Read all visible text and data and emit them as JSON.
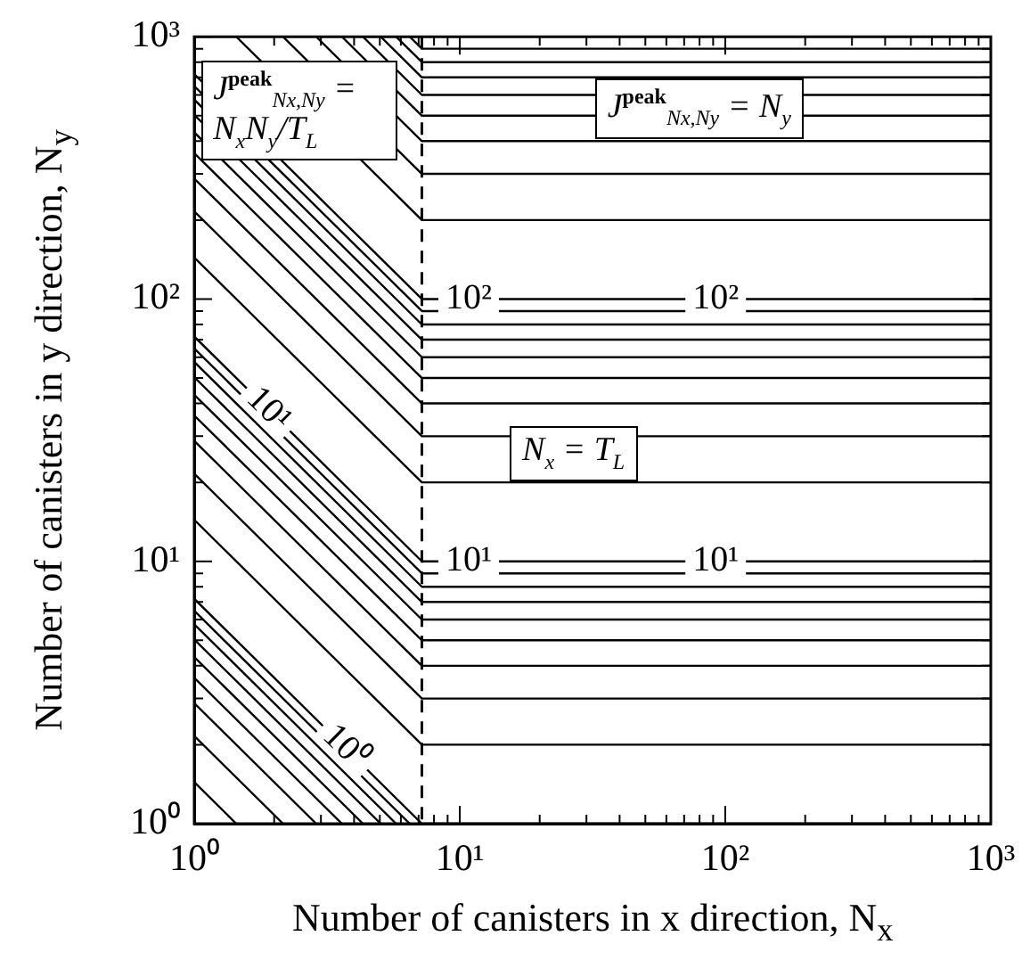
{
  "chart_data": {
    "type": "line",
    "log": "xy",
    "marker": "none",
    "legend": false,
    "xlabel": "Number of canisters in x direction, N$_{x}$",
    "ylabel": "Number of canisters in y direction, N$_{y}$",
    "xlim": [
      1,
      1000
    ],
    "ylim": [
      1,
      1000
    ],
    "xticks": [
      {
        "value": 1,
        "label": "10⁰"
      },
      {
        "value": 2,
        "label": null
      },
      {
        "value": 3,
        "label": null
      },
      {
        "value": 4,
        "label": null
      },
      {
        "value": 5,
        "label": null
      },
      {
        "value": 6,
        "label": null
      },
      {
        "value": 7,
        "label": null
      },
      {
        "value": 8,
        "label": null
      },
      {
        "value": 9,
        "label": null
      },
      {
        "value": 10,
        "label": "10¹"
      },
      {
        "value": 20,
        "label": null
      },
      {
        "value": 30,
        "label": null
      },
      {
        "value": 40,
        "label": null
      },
      {
        "value": 50,
        "label": null
      },
      {
        "value": 60,
        "label": null
      },
      {
        "value": 70,
        "label": null
      },
      {
        "value": 80,
        "label": null
      },
      {
        "value": 90,
        "label": null
      },
      {
        "value": 100,
        "label": "10²"
      },
      {
        "value": 200,
        "label": null
      },
      {
        "value": 300,
        "label": null
      },
      {
        "value": 400,
        "label": null
      },
      {
        "value": 500,
        "label": null
      },
      {
        "value": 600,
        "label": null
      },
      {
        "value": 700,
        "label": null
      },
      {
        "value": 800,
        "label": null
      },
      {
        "value": 900,
        "label": null
      },
      {
        "value": 1000,
        "label": "10³"
      }
    ],
    "yticks": [
      {
        "value": 1,
        "label": "10⁰"
      },
      {
        "value": 2,
        "label": null
      },
      {
        "value": 3,
        "label": null
      },
      {
        "value": 4,
        "label": null
      },
      {
        "value": 5,
        "label": null
      },
      {
        "value": 6,
        "label": null
      },
      {
        "value": 7,
        "label": null
      },
      {
        "value": 8,
        "label": null
      },
      {
        "value": 9,
        "label": null
      },
      {
        "value": 10,
        "label": "10¹"
      },
      {
        "value": 20,
        "label": null
      },
      {
        "value": 30,
        "label": null
      },
      {
        "value": 40,
        "label": null
      },
      {
        "value": 50,
        "label": null
      },
      {
        "value": 60,
        "label": null
      },
      {
        "value": 70,
        "label": null
      },
      {
        "value": 80,
        "label": null
      },
      {
        "value": 90,
        "label": null
      },
      {
        "value": 100,
        "label": "10²"
      },
      {
        "value": 200,
        "label": null
      },
      {
        "value": 300,
        "label": null
      },
      {
        "value": 400,
        "label": null
      },
      {
        "value": 500,
        "label": null
      },
      {
        "value": 600,
        "label": null
      },
      {
        "value": 700,
        "label": null
      },
      {
        "value": 800,
        "label": null
      },
      {
        "value": 900,
        "label": null
      },
      {
        "value": 1000,
        "label": "10³"
      }
    ],
    "ref_lines": [
      {
        "axis": "x",
        "value": 7.2,
        "label": "N$_{x}$ = T$_{L}$",
        "line_style": "dashed",
        "color": "#000000"
      }
    ],
    "annotations": [
      "J$^{peak}$$_{Nx,Ny}$ = N$_{x}$N$_{y}$/T$_{L}$",
      "J$^{peak}$$_{Nx,Ny}$ = N$_{y}$",
      {
        "text": "10⁰",
        "x": 3.7,
        "y": 1.95
      },
      {
        "text": "10¹",
        "x": 1.9,
        "y": 37.9
      },
      {
        "text": "10¹",
        "x": 10.8,
        "y": 10
      },
      {
        "text": "10¹",
        "x": 92,
        "y": 10
      },
      {
        "text": "10²",
        "x": 10.8,
        "y": 100
      },
      {
        "text": "10²",
        "x": 92,
        "y": 100
      }
    ],
    "series": [
      {
        "color": "#000000",
        "x": [
          1,
          1.44
        ],
        "values": [
          1.44,
          1
        ]
      },
      {
        "color": "#000000",
        "x": [
          1,
          2.16
        ],
        "values": [
          2.16,
          1
        ]
      },
      {
        "color": "#000000",
        "x": [
          1,
          2.88
        ],
        "values": [
          2.88,
          1
        ]
      },
      {
        "color": "#000000",
        "x": [
          1,
          3.6
        ],
        "values": [
          3.6,
          1
        ]
      },
      {
        "color": "#000000",
        "x": [
          1,
          4.32
        ],
        "values": [
          4.32,
          1
        ]
      },
      {
        "color": "#000000",
        "x": [
          1,
          5.04
        ],
        "values": [
          5.04,
          1
        ]
      },
      {
        "color": "#000000",
        "x": [
          1,
          5.76
        ],
        "values": [
          5.76,
          1
        ]
      },
      {
        "color": "#000000",
        "x": [
          1,
          6.48
        ],
        "values": [
          6.48,
          1
        ]
      },
      {
        "color": "#000000",
        "x": [
          1,
          7.2,
          1000
        ],
        "values": [
          7.2,
          1,
          1
        ]
      },
      {
        "color": "#000000",
        "x": [
          1,
          7.2,
          1000
        ],
        "values": [
          14.4,
          2,
          2
        ]
      },
      {
        "color": "#000000",
        "x": [
          1,
          7.2,
          1000
        ],
        "values": [
          21.6,
          3,
          3
        ]
      },
      {
        "color": "#000000",
        "x": [
          1,
          7.2,
          1000
        ],
        "values": [
          28.8,
          4,
          4
        ]
      },
      {
        "color": "#000000",
        "x": [
          1,
          7.2,
          1000
        ],
        "values": [
          36,
          5,
          5
        ]
      },
      {
        "color": "#000000",
        "x": [
          1,
          7.2,
          1000
        ],
        "values": [
          43.2,
          6,
          6
        ]
      },
      {
        "color": "#000000",
        "x": [
          1,
          7.2,
          1000
        ],
        "values": [
          50.4,
          7,
          7
        ]
      },
      {
        "color": "#000000",
        "x": [
          1,
          7.2,
          1000
        ],
        "values": [
          57.6,
          8,
          8
        ]
      },
      {
        "color": "#000000",
        "x": [
          1,
          7.2,
          1000
        ],
        "values": [
          64.8,
          9,
          9
        ]
      },
      {
        "color": "#000000",
        "x": [
          1,
          7.2,
          1000
        ],
        "values": [
          72,
          10,
          10
        ]
      },
      {
        "color": "#000000",
        "x": [
          1,
          7.2,
          1000
        ],
        "values": [
          144,
          20,
          20
        ]
      },
      {
        "color": "#000000",
        "x": [
          1,
          7.2,
          1000
        ],
        "values": [
          216,
          30,
          30
        ]
      },
      {
        "color": "#000000",
        "x": [
          1,
          7.2,
          1000
        ],
        "values": [
          288,
          40,
          40
        ]
      },
      {
        "color": "#000000",
        "x": [
          1,
          7.2,
          1000
        ],
        "values": [
          360,
          50,
          50
        ]
      },
      {
        "color": "#000000",
        "x": [
          1,
          7.2,
          1000
        ],
        "values": [
          432,
          60,
          60
        ]
      },
      {
        "color": "#000000",
        "x": [
          1,
          7.2,
          1000
        ],
        "values": [
          504,
          70,
          70
        ]
      },
      {
        "color": "#000000",
        "x": [
          1,
          7.2,
          1000
        ],
        "values": [
          576,
          80,
          80
        ]
      },
      {
        "color": "#000000",
        "x": [
          1,
          7.2,
          1000
        ],
        "values": [
          648,
          90,
          90
        ]
      },
      {
        "color": "#000000",
        "x": [
          1,
          7.2,
          1000
        ],
        "values": [
          720,
          100,
          100
        ]
      },
      {
        "color": "#000000",
        "x": [
          1.44,
          7.2,
          1000
        ],
        "values": [
          1000,
          200,
          200
        ]
      },
      {
        "color": "#000000",
        "x": [
          2.16,
          7.2,
          1000
        ],
        "values": [
          1000,
          300,
          300
        ]
      },
      {
        "color": "#000000",
        "x": [
          2.88,
          7.2,
          1000
        ],
        "values": [
          1000,
          400,
          400
        ]
      },
      {
        "color": "#000000",
        "x": [
          3.6,
          7.2,
          1000
        ],
        "values": [
          1000,
          500,
          500
        ]
      },
      {
        "color": "#000000",
        "x": [
          4.32,
          7.2,
          1000
        ],
        "values": [
          1000,
          600,
          600
        ]
      },
      {
        "color": "#000000",
        "x": [
          5.04,
          7.2,
          1000
        ],
        "values": [
          1000,
          700,
          700
        ]
      },
      {
        "color": "#000000",
        "x": [
          5.76,
          7.2,
          1000
        ],
        "values": [
          1000,
          800,
          800
        ]
      },
      {
        "color": "#000000",
        "x": [
          6.48,
          7.2,
          1000
        ],
        "values": [
          1000,
          900,
          900
        ]
      }
    ]
  }
}
